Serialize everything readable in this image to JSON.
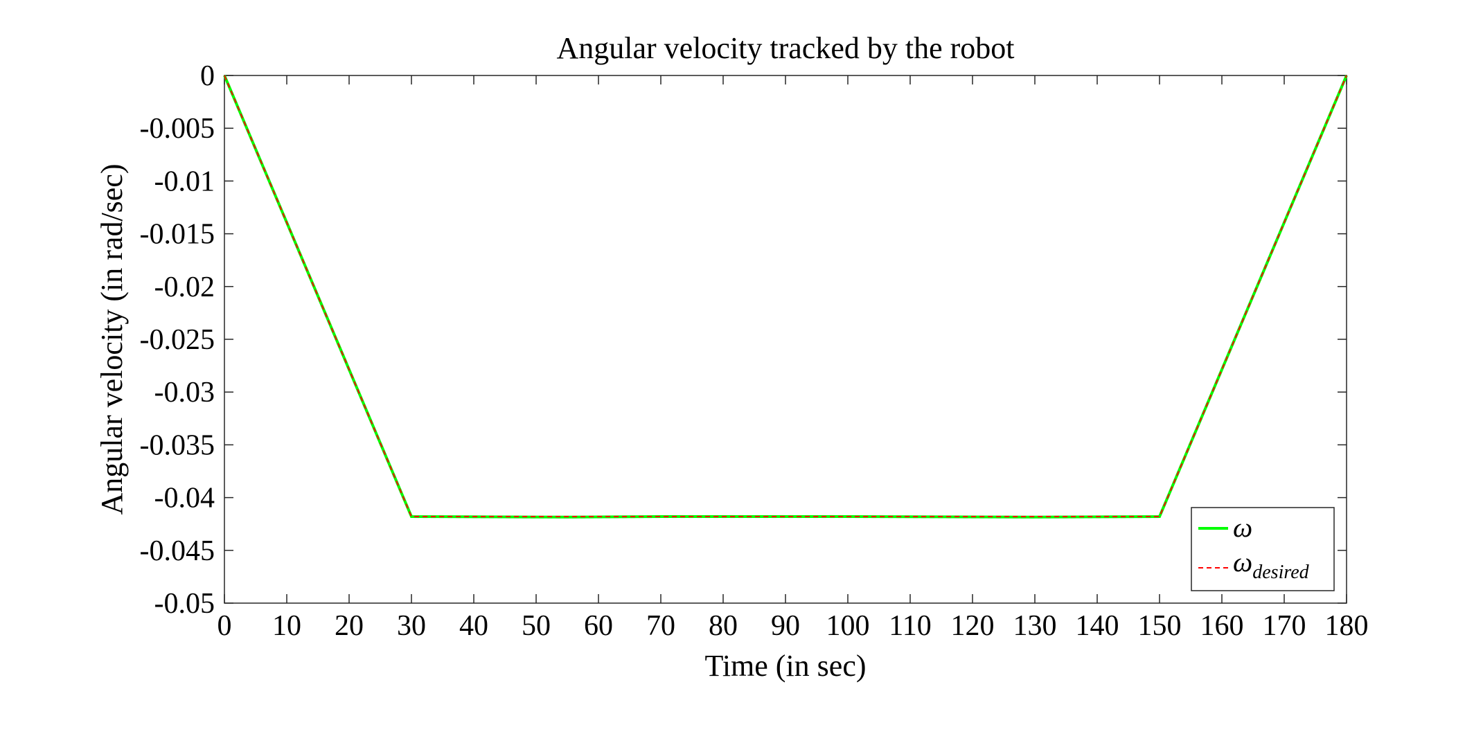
{
  "chart_data": {
    "type": "line",
    "title": "Angular velocity tracked by the robot",
    "xlabel": "Time (in sec)",
    "ylabel": "Angular velocity (in rad/sec)",
    "xlim": [
      0,
      180
    ],
    "ylim": [
      -0.05,
      0
    ],
    "xticks": [
      0,
      10,
      20,
      30,
      40,
      50,
      60,
      70,
      80,
      90,
      100,
      110,
      120,
      130,
      140,
      150,
      160,
      170,
      180
    ],
    "xtick_labels": [
      "0",
      "10",
      "20",
      "30",
      "40",
      "50",
      "60",
      "70",
      "80",
      "90",
      "100",
      "110",
      "120",
      "130",
      "140",
      "150",
      "160",
      "170",
      "180"
    ],
    "yticks": [
      0,
      -0.005,
      -0.01,
      -0.015,
      -0.02,
      -0.025,
      -0.03,
      -0.035,
      -0.04,
      -0.045,
      -0.05
    ],
    "ytick_labels": [
      "0",
      "-0.005",
      "-0.01",
      "-0.015",
      "-0.02",
      "-0.025",
      "-0.03",
      "-0.035",
      "-0.04",
      "-0.045",
      "-0.05"
    ],
    "grid": false,
    "legend_position": "bottom-right",
    "series": [
      {
        "name": "ω",
        "color": "#00ff00",
        "style": "solid",
        "x": [
          0,
          30,
          55,
          70,
          100,
          130,
          150,
          180
        ],
        "y": [
          0,
          -0.0418,
          -0.04185,
          -0.0418,
          -0.0418,
          -0.04185,
          -0.0418,
          0
        ]
      },
      {
        "name": "ω",
        "name_subscript": "desired",
        "color": "#ff0000",
        "style": "dashed",
        "x": [
          0,
          30,
          150,
          180
        ],
        "y": [
          0,
          -0.0418,
          -0.0418,
          0
        ]
      }
    ]
  }
}
